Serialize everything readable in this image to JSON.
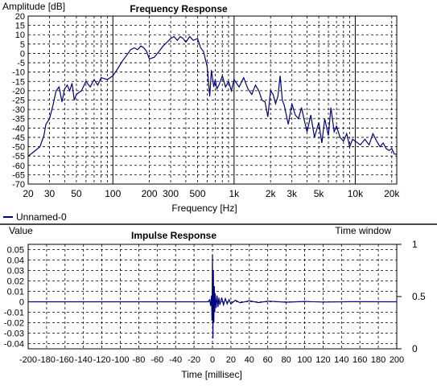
{
  "chart_data": [
    {
      "type": "line",
      "title": "Frequency Response",
      "ylabel": "Amplitude [dB]",
      "xlabel": "Frequency [Hz]",
      "xscale": "log",
      "xlim": [
        20,
        22000
      ],
      "ylim": [
        -70,
        20
      ],
      "grid": true,
      "legend": "bottom-left",
      "color": "#000080",
      "x_tick_labels": [
        "20",
        "30",
        "50",
        "100",
        "200",
        "300",
        "500",
        "1k",
        "2k",
        "3k",
        "5k",
        "10k",
        "20k"
      ],
      "x_ticks": [
        20,
        30,
        50,
        100,
        200,
        300,
        500,
        1000,
        2000,
        3000,
        5000,
        10000,
        20000
      ],
      "y_ticks": [
        20,
        15,
        10,
        5,
        0,
        -5,
        -10,
        -15,
        -20,
        -25,
        -30,
        -35,
        -40,
        -45,
        -50,
        -55,
        -60,
        -65,
        -70
      ],
      "series": [
        {
          "name": "Unnamed-0",
          "x": [
            20,
            22,
            25,
            27,
            28,
            30,
            32,
            34,
            36,
            38,
            40,
            42,
            44,
            46,
            48,
            50,
            55,
            60,
            65,
            70,
            75,
            80,
            90,
            100,
            110,
            120,
            130,
            140,
            150,
            160,
            170,
            180,
            190,
            200,
            220,
            240,
            260,
            280,
            300,
            320,
            340,
            360,
            380,
            400,
            430,
            460,
            500,
            530,
            560,
            600,
            630,
            650,
            680,
            700,
            720,
            750,
            800,
            850,
            900,
            950,
            1000,
            1100,
            1200,
            1300,
            1400,
            1500,
            1600,
            1700,
            1800,
            1900,
            2000,
            2100,
            2200,
            2300,
            2400,
            2500,
            2600,
            2800,
            3000,
            3200,
            3400,
            3600,
            3800,
            4000,
            4300,
            4600,
            5000,
            5300,
            5600,
            6000,
            6300,
            6700,
            7000,
            7500,
            8000,
            8500,
            9000,
            9500,
            10000,
            11000,
            12000,
            13000,
            14000,
            15000,
            16000,
            17000,
            18000,
            19000,
            20000,
            21000,
            22000
          ],
          "y": [
            -55,
            -53,
            -50,
            -44,
            -38,
            -35,
            -28,
            -20,
            -18,
            -26,
            -19,
            -17,
            -20,
            -16,
            -25,
            -22,
            -20,
            -15,
            -18,
            -14,
            -17,
            -13,
            -14,
            -12,
            -8,
            -4,
            -1,
            2,
            3,
            2,
            4,
            3,
            1,
            -3,
            -2,
            1,
            4,
            6,
            8,
            9,
            7,
            9,
            8,
            6,
            9,
            7,
            8,
            3,
            1,
            -7,
            -23,
            -9,
            -18,
            -14,
            -19,
            -17,
            -12,
            -18,
            -15,
            -20,
            -14,
            -18,
            -13,
            -19,
            -22,
            -17,
            -20,
            -25,
            -26,
            -34,
            -20,
            -22,
            -27,
            -23,
            -12,
            -25,
            -28,
            -38,
            -27,
            -33,
            -35,
            -29,
            -36,
            -42,
            -33,
            -45,
            -37,
            -48,
            -35,
            -44,
            -29,
            -42,
            -39,
            -45,
            -47,
            -43,
            -50,
            -46,
            -47,
            -49,
            -46,
            -49,
            -43,
            -47,
            -50,
            -48,
            -51,
            -52,
            -51,
            -54,
            -54
          ]
        }
      ]
    },
    {
      "type": "line",
      "title": "Impulse Response",
      "ylabel": "Value",
      "y2label": "Time window",
      "xlabel": "Time [millisec]",
      "xlim": [
        -200,
        200
      ],
      "ylim": [
        -0.045,
        0.055
      ],
      "y2lim": [
        0,
        1
      ],
      "grid": true,
      "color": "#000080",
      "x_tick_labels": [
        "-200",
        "-180",
        "-160",
        "-140",
        "-120",
        "-100",
        "-80",
        "-60",
        "-40",
        "-20",
        "0",
        "20",
        "40",
        "60",
        "80",
        "100",
        "120",
        "140",
        "160",
        "180",
        "200"
      ],
      "x_ticks": [
        -200,
        -180,
        -160,
        -140,
        -120,
        -100,
        -80,
        -60,
        -40,
        -20,
        0,
        20,
        40,
        60,
        80,
        100,
        120,
        140,
        160,
        180,
        200
      ],
      "y_tick_labels": [
        "0.05",
        "0.04",
        "0.03",
        "0.02",
        "0.01",
        "0",
        "-0.01",
        "-0.02",
        "-0.03",
        "-0.04"
      ],
      "y_ticks": [
        0.05,
        0.04,
        0.03,
        0.02,
        0.01,
        0,
        -0.01,
        -0.02,
        -0.03,
        -0.04
      ],
      "y2_tick_labels": [
        "1",
        "0.5",
        "0"
      ],
      "y2_ticks": [
        1,
        0.5,
        0
      ],
      "series": [
        {
          "name": "",
          "x": [
            -200,
            -5,
            -3,
            -2,
            -1,
            -0.5,
            0,
            0.5,
            1,
            1.5,
            2,
            2.5,
            3,
            4,
            5,
            6,
            7,
            8,
            10,
            12,
            14,
            16,
            18,
            20,
            25,
            30,
            40,
            50,
            60,
            80,
            100,
            120,
            150,
            200
          ],
          "y": [
            0,
            0,
            0.002,
            -0.004,
            0.006,
            -0.018,
            0.045,
            -0.035,
            0.03,
            -0.02,
            0.015,
            -0.01,
            0.008,
            -0.006,
            0.006,
            -0.005,
            0.004,
            -0.003,
            0.004,
            -0.003,
            0.003,
            -0.002,
            0.002,
            -0.002,
            0.0015,
            -0.001,
            0.001,
            -0.0008,
            0.0006,
            -0.0004,
            0.0003,
            -0.0002,
            0.0001,
            0
          ]
        }
      ]
    }
  ]
}
